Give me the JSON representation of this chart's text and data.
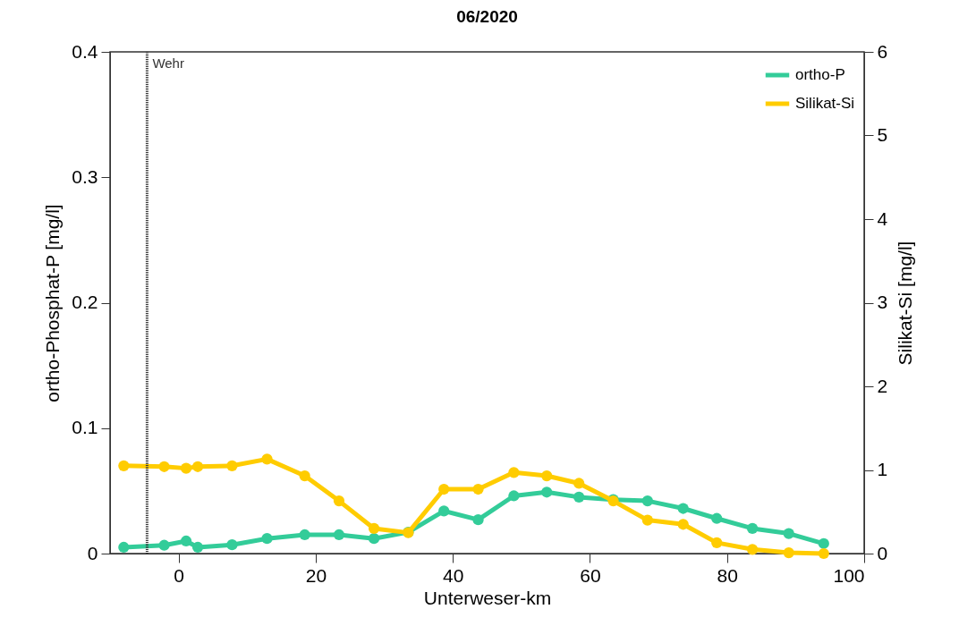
{
  "chart_data": {
    "type": "line",
    "title": "06/2020",
    "xlabel": "Unterweser-km",
    "ylabel": "ortho-Phosphat-P [mg/l]",
    "y2label": "Silikat-Si [mg/l]",
    "x": [
      -8,
      -2.1,
      1.1,
      2.8,
      7.8,
      12.9,
      18.4,
      23.4,
      28.5,
      33.5,
      38.7,
      43.7,
      48.9,
      53.7,
      58.4,
      63.4,
      68.4,
      73.6,
      78.5,
      83.7,
      89,
      94.1
    ],
    "series": [
      {
        "name": "ortho-P",
        "color": "#33cc99",
        "values": [
          0.005,
          0.0066,
          0.01,
          0.005,
          0.007,
          0.012,
          0.015,
          0.015,
          0.012,
          0.017,
          0.034,
          0.027,
          0.046,
          0.049,
          0.045,
          0.043,
          0.042,
          0.036,
          0.028,
          0.02,
          0.016,
          0.008
        ]
      },
      {
        "name": "Silikat-Si",
        "color": "#ffcc00",
        "axis": "y2",
        "values": [
          1.05,
          1.04,
          1.02,
          1.04,
          1.05,
          1.13,
          0.93,
          0.63,
          0.3,
          0.25,
          0.77,
          0.77,
          0.97,
          0.93,
          0.84,
          0.63,
          0.4,
          0.35,
          0.13,
          0.05,
          0.01,
          0
        ]
      }
    ],
    "xlim": [
      -10,
      100
    ],
    "xticks": [
      0,
      20,
      40,
      60,
      80,
      100
    ],
    "ylim": [
      0,
      0.4
    ],
    "yticks": [
      0,
      0.1,
      0.2,
      0.3,
      0.4
    ],
    "y2lim": [
      0,
      6
    ],
    "y2ticks": [
      0,
      1,
      2,
      3,
      4,
      5,
      6
    ],
    "ref_lines": [
      {
        "axis": "x",
        "value": -4.6,
        "label": "Wehr",
        "color": "#333333",
        "line_style": "dotted"
      }
    ],
    "marker": "circle",
    "legend": "top right",
    "grid": false
  }
}
